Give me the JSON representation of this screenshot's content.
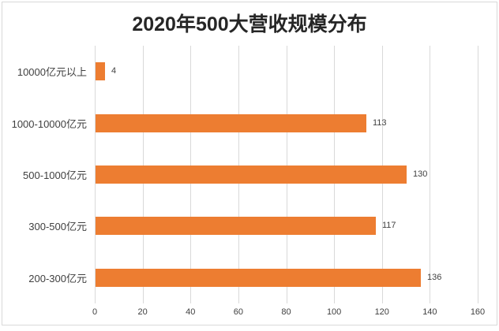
{
  "title": "2020年500大营收规模分布",
  "chart_data": {
    "type": "bar",
    "orientation": "horizontal",
    "title": "2020年500大营收规模分布",
    "categories": [
      "10000亿元以上",
      "1000-10000亿元",
      "500-1000亿元",
      "300-500亿元",
      "200-300亿元"
    ],
    "values": [
      4,
      113,
      130,
      117,
      136
    ],
    "xlabel": "",
    "ylabel": "",
    "xlim": [
      0,
      160
    ],
    "xticks": [
      0,
      20,
      40,
      60,
      80,
      100,
      120,
      140,
      160
    ],
    "grid": "vertical-only",
    "data_labels": true,
    "legend": "none",
    "colors": {
      "bar": "#ed7d31",
      "gridline": "#d9d9d9",
      "frame_border": "#d9d9d9",
      "title_text": "#262626",
      "axis_text": "#404040",
      "background": "#ffffff"
    }
  }
}
